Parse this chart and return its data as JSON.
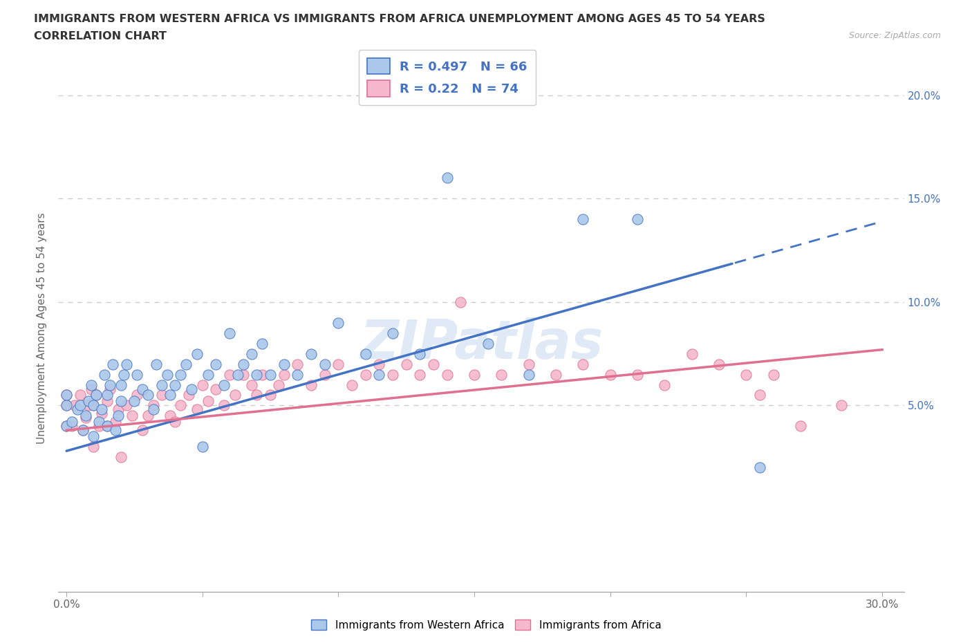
{
  "title_line1": "IMMIGRANTS FROM WESTERN AFRICA VS IMMIGRANTS FROM AFRICA UNEMPLOYMENT AMONG AGES 45 TO 54 YEARS",
  "title_line2": "CORRELATION CHART",
  "source_text": "Source: ZipAtlas.com",
  "ylabel": "Unemployment Among Ages 45 to 54 years",
  "xlim": [
    -0.003,
    0.308
  ],
  "ylim": [
    -0.04,
    0.215
  ],
  "series1_color": "#aac8ea",
  "series2_color": "#f5b8cc",
  "line1_color": "#4472c4",
  "line2_color": "#e07090",
  "line1_dash_start": 0.245,
  "R1": 0.497,
  "N1": 66,
  "R2": 0.22,
  "N2": 74,
  "legend1_label": "Immigrants from Western Africa",
  "legend2_label": "Immigrants from Africa",
  "watermark": "ZIPatlas",
  "background_color": "#ffffff",
  "grid_color": "#cccccc",
  "series1_x": [
    0.0,
    0.0,
    0.0,
    0.002,
    0.004,
    0.005,
    0.006,
    0.007,
    0.008,
    0.009,
    0.01,
    0.01,
    0.011,
    0.012,
    0.013,
    0.014,
    0.015,
    0.015,
    0.016,
    0.017,
    0.018,
    0.019,
    0.02,
    0.02,
    0.021,
    0.022,
    0.025,
    0.026,
    0.028,
    0.03,
    0.032,
    0.033,
    0.035,
    0.037,
    0.038,
    0.04,
    0.042,
    0.044,
    0.046,
    0.048,
    0.05,
    0.052,
    0.055,
    0.058,
    0.06,
    0.063,
    0.065,
    0.068,
    0.07,
    0.072,
    0.075,
    0.08,
    0.085,
    0.09,
    0.095,
    0.1,
    0.11,
    0.115,
    0.12,
    0.13,
    0.14,
    0.155,
    0.17,
    0.19,
    0.21,
    0.255
  ],
  "series1_y": [
    0.04,
    0.05,
    0.055,
    0.042,
    0.048,
    0.05,
    0.038,
    0.045,
    0.052,
    0.06,
    0.035,
    0.05,
    0.055,
    0.042,
    0.048,
    0.065,
    0.04,
    0.055,
    0.06,
    0.07,
    0.038,
    0.045,
    0.052,
    0.06,
    0.065,
    0.07,
    0.052,
    0.065,
    0.058,
    0.055,
    0.048,
    0.07,
    0.06,
    0.065,
    0.055,
    0.06,
    0.065,
    0.07,
    0.058,
    0.075,
    0.03,
    0.065,
    0.07,
    0.06,
    0.085,
    0.065,
    0.07,
    0.075,
    0.065,
    0.08,
    0.065,
    0.07,
    0.065,
    0.075,
    0.07,
    0.09,
    0.075,
    0.065,
    0.085,
    0.075,
    0.16,
    0.08,
    0.065,
    0.14,
    0.14,
    0.02
  ],
  "series2_x": [
    0.0,
    0.0,
    0.0,
    0.002,
    0.003,
    0.005,
    0.006,
    0.007,
    0.008,
    0.009,
    0.01,
    0.01,
    0.011,
    0.012,
    0.013,
    0.015,
    0.015,
    0.016,
    0.018,
    0.019,
    0.02,
    0.022,
    0.024,
    0.026,
    0.028,
    0.03,
    0.032,
    0.035,
    0.038,
    0.04,
    0.042,
    0.045,
    0.048,
    0.05,
    0.052,
    0.055,
    0.058,
    0.06,
    0.062,
    0.065,
    0.068,
    0.07,
    0.072,
    0.075,
    0.078,
    0.08,
    0.085,
    0.09,
    0.095,
    0.1,
    0.105,
    0.11,
    0.115,
    0.12,
    0.125,
    0.13,
    0.135,
    0.14,
    0.145,
    0.15,
    0.16,
    0.17,
    0.18,
    0.19,
    0.2,
    0.21,
    0.22,
    0.23,
    0.24,
    0.25,
    0.255,
    0.26,
    0.27,
    0.285
  ],
  "series2_y": [
    0.04,
    0.05,
    0.055,
    0.04,
    0.05,
    0.055,
    0.038,
    0.044,
    0.05,
    0.058,
    0.03,
    0.05,
    0.055,
    0.04,
    0.046,
    0.04,
    0.052,
    0.058,
    0.042,
    0.048,
    0.025,
    0.05,
    0.045,
    0.055,
    0.038,
    0.045,
    0.05,
    0.055,
    0.045,
    0.042,
    0.05,
    0.055,
    0.048,
    0.06,
    0.052,
    0.058,
    0.05,
    0.065,
    0.055,
    0.065,
    0.06,
    0.055,
    0.065,
    0.055,
    0.06,
    0.065,
    0.07,
    0.06,
    0.065,
    0.07,
    0.06,
    0.065,
    0.07,
    0.065,
    0.07,
    0.065,
    0.07,
    0.065,
    0.1,
    0.065,
    0.065,
    0.07,
    0.065,
    0.07,
    0.065,
    0.065,
    0.06,
    0.075,
    0.07,
    0.065,
    0.055,
    0.065,
    0.04,
    0.05
  ]
}
